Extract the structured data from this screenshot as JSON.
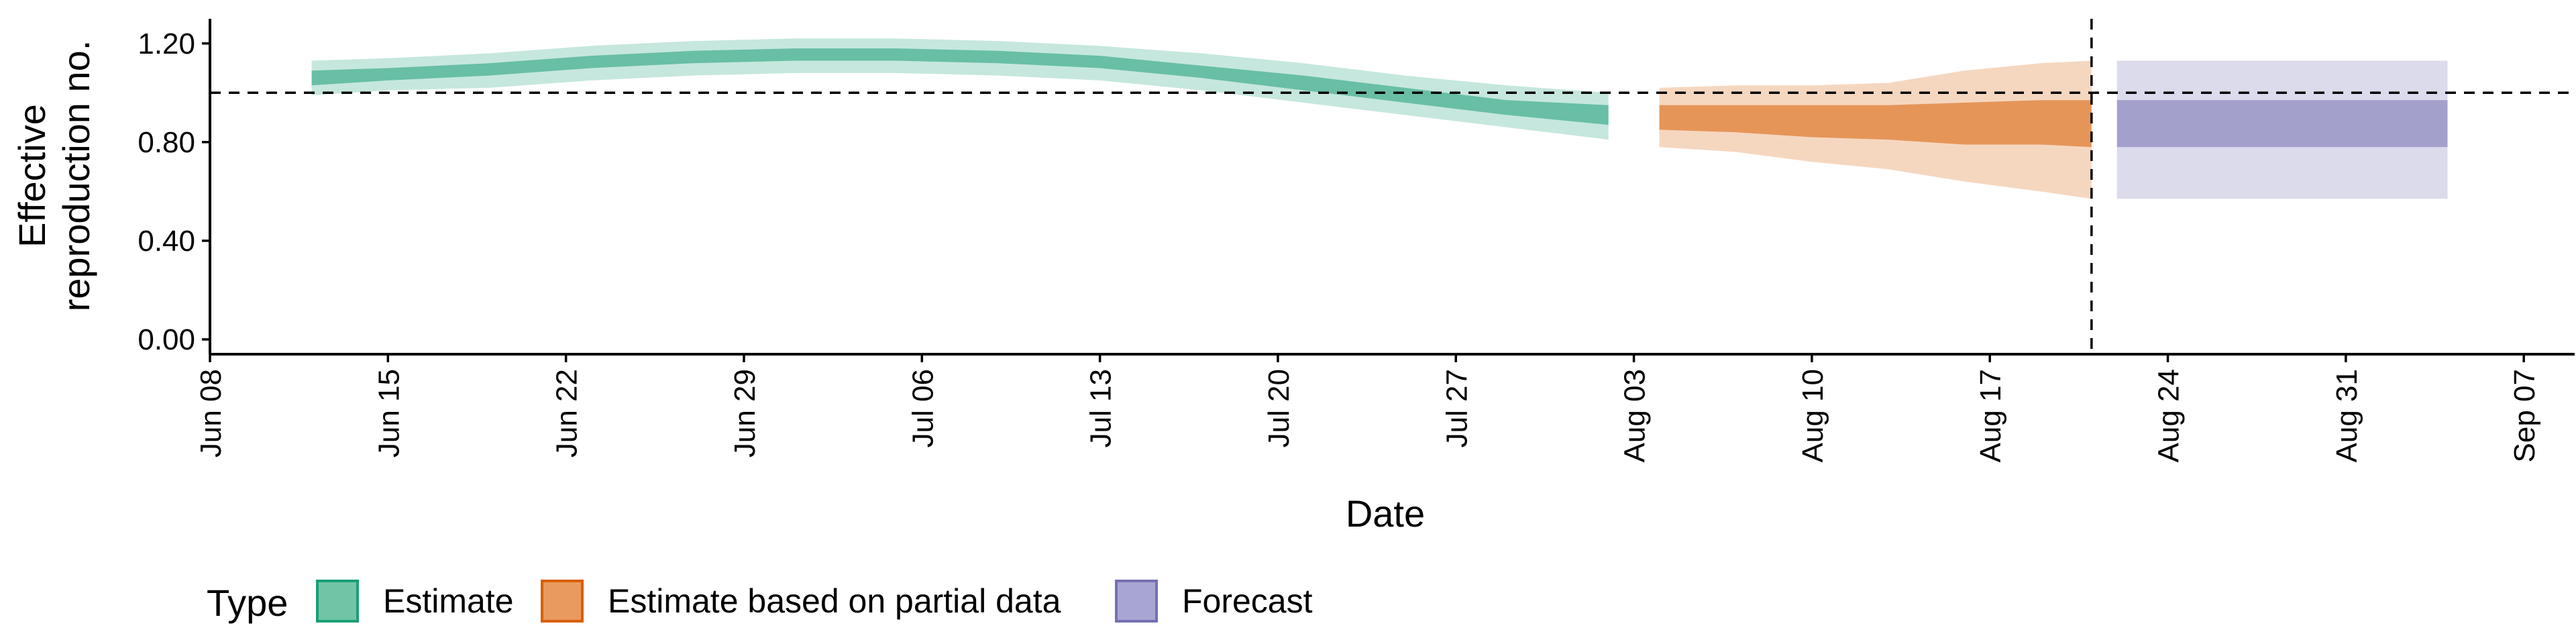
{
  "chart_data": {
    "type": "area",
    "xlabel": "Date",
    "ylabel_lines": [
      "Effective",
      "reproduction no."
    ],
    "x_ticks": [
      "Jun 08",
      "Jun 15",
      "Jun 22",
      "Jun 29",
      "Jul 06",
      "Jul 13",
      "Jul 20",
      "Jul 27",
      "Aug 03",
      "Aug 10",
      "Aug 17",
      "Aug 24",
      "Aug 31",
      "Sep 07"
    ],
    "x_tick_dates": [
      "2020-06-08",
      "2020-06-15",
      "2020-06-22",
      "2020-06-29",
      "2020-07-06",
      "2020-07-13",
      "2020-07-20",
      "2020-07-27",
      "2020-08-03",
      "2020-08-10",
      "2020-08-17",
      "2020-08-24",
      "2020-08-31",
      "2020-09-07"
    ],
    "x_range": [
      "2020-06-08",
      "2020-09-09"
    ],
    "y_ticks": [
      "0.00",
      "0.40",
      "0.80",
      "1.20"
    ],
    "y_tick_values": [
      0,
      0.4,
      0.8,
      1.2
    ],
    "ylim": [
      -0.06,
      1.3
    ],
    "reference_hline": 1.0,
    "reference_vline": "2020-08-21",
    "series": [
      {
        "name": "Estimate",
        "color": "#1B9E77",
        "points": [
          {
            "date": "2020-06-12",
            "outer": [
              0.99,
              1.13
            ],
            "inner": [
              1.03,
              1.09
            ]
          },
          {
            "date": "2020-06-15",
            "outer": [
              1.01,
              1.14
            ],
            "inner": [
              1.05,
              1.1
            ]
          },
          {
            "date": "2020-06-19",
            "outer": [
              1.02,
              1.16
            ],
            "inner": [
              1.07,
              1.12
            ]
          },
          {
            "date": "2020-06-23",
            "outer": [
              1.05,
              1.19
            ],
            "inner": [
              1.1,
              1.15
            ]
          },
          {
            "date": "2020-06-27",
            "outer": [
              1.07,
              1.21
            ],
            "inner": [
              1.12,
              1.17
            ]
          },
          {
            "date": "2020-07-01",
            "outer": [
              1.08,
              1.22
            ],
            "inner": [
              1.13,
              1.18
            ]
          },
          {
            "date": "2020-07-05",
            "outer": [
              1.08,
              1.22
            ],
            "inner": [
              1.13,
              1.18
            ]
          },
          {
            "date": "2020-07-09",
            "outer": [
              1.07,
              1.21
            ],
            "inner": [
              1.12,
              1.17
            ]
          },
          {
            "date": "2020-07-13",
            "outer": [
              1.05,
              1.19
            ],
            "inner": [
              1.1,
              1.15
            ]
          },
          {
            "date": "2020-07-17",
            "outer": [
              1.01,
              1.16
            ],
            "inner": [
              1.06,
              1.11
            ]
          },
          {
            "date": "2020-07-21",
            "outer": [
              0.96,
              1.12
            ],
            "inner": [
              1.01,
              1.07
            ]
          },
          {
            "date": "2020-07-25",
            "outer": [
              0.91,
              1.07
            ],
            "inner": [
              0.96,
              1.02
            ]
          },
          {
            "date": "2020-07-29",
            "outer": [
              0.86,
              1.03
            ],
            "inner": [
              0.91,
              0.97
            ]
          },
          {
            "date": "2020-08-02",
            "outer": [
              0.81,
              1.0
            ],
            "inner": [
              0.87,
              0.95
            ]
          }
        ]
      },
      {
        "name": "Estimate based on partial data",
        "color": "#D95F02",
        "points": [
          {
            "date": "2020-08-04",
            "outer": [
              0.78,
              1.02
            ],
            "inner": [
              0.85,
              0.95
            ]
          },
          {
            "date": "2020-08-07",
            "outer": [
              0.76,
              1.03
            ],
            "inner": [
              0.84,
              0.95
            ]
          },
          {
            "date": "2020-08-10",
            "outer": [
              0.72,
              1.03
            ],
            "inner": [
              0.82,
              0.95
            ]
          },
          {
            "date": "2020-08-13",
            "outer": [
              0.69,
              1.04
            ],
            "inner": [
              0.81,
              0.95
            ]
          },
          {
            "date": "2020-08-16",
            "outer": [
              0.64,
              1.09
            ],
            "inner": [
              0.79,
              0.96
            ]
          },
          {
            "date": "2020-08-19",
            "outer": [
              0.6,
              1.12
            ],
            "inner": [
              0.79,
              0.97
            ]
          },
          {
            "date": "2020-08-21",
            "outer": [
              0.57,
              1.13
            ],
            "inner": [
              0.78,
              0.97
            ]
          }
        ]
      },
      {
        "name": "Forecast",
        "color": "#7570B3",
        "points": [
          {
            "date": "2020-08-22",
            "outer": [
              0.57,
              1.13
            ],
            "inner": [
              0.78,
              0.97
            ]
          },
          {
            "date": "2020-09-04",
            "outer": [
              0.57,
              1.13
            ],
            "inner": [
              0.78,
              0.97
            ]
          }
        ]
      }
    ],
    "legend": {
      "title": "Type",
      "position": "bottom",
      "items": [
        "Estimate",
        "Estimate based on partial data",
        "Forecast"
      ],
      "fills": [
        "#72C4A7",
        "#E99A5E",
        "#A9A5D3"
      ],
      "strokes": [
        "#1B9E77",
        "#D95F02",
        "#7570B3"
      ]
    }
  }
}
